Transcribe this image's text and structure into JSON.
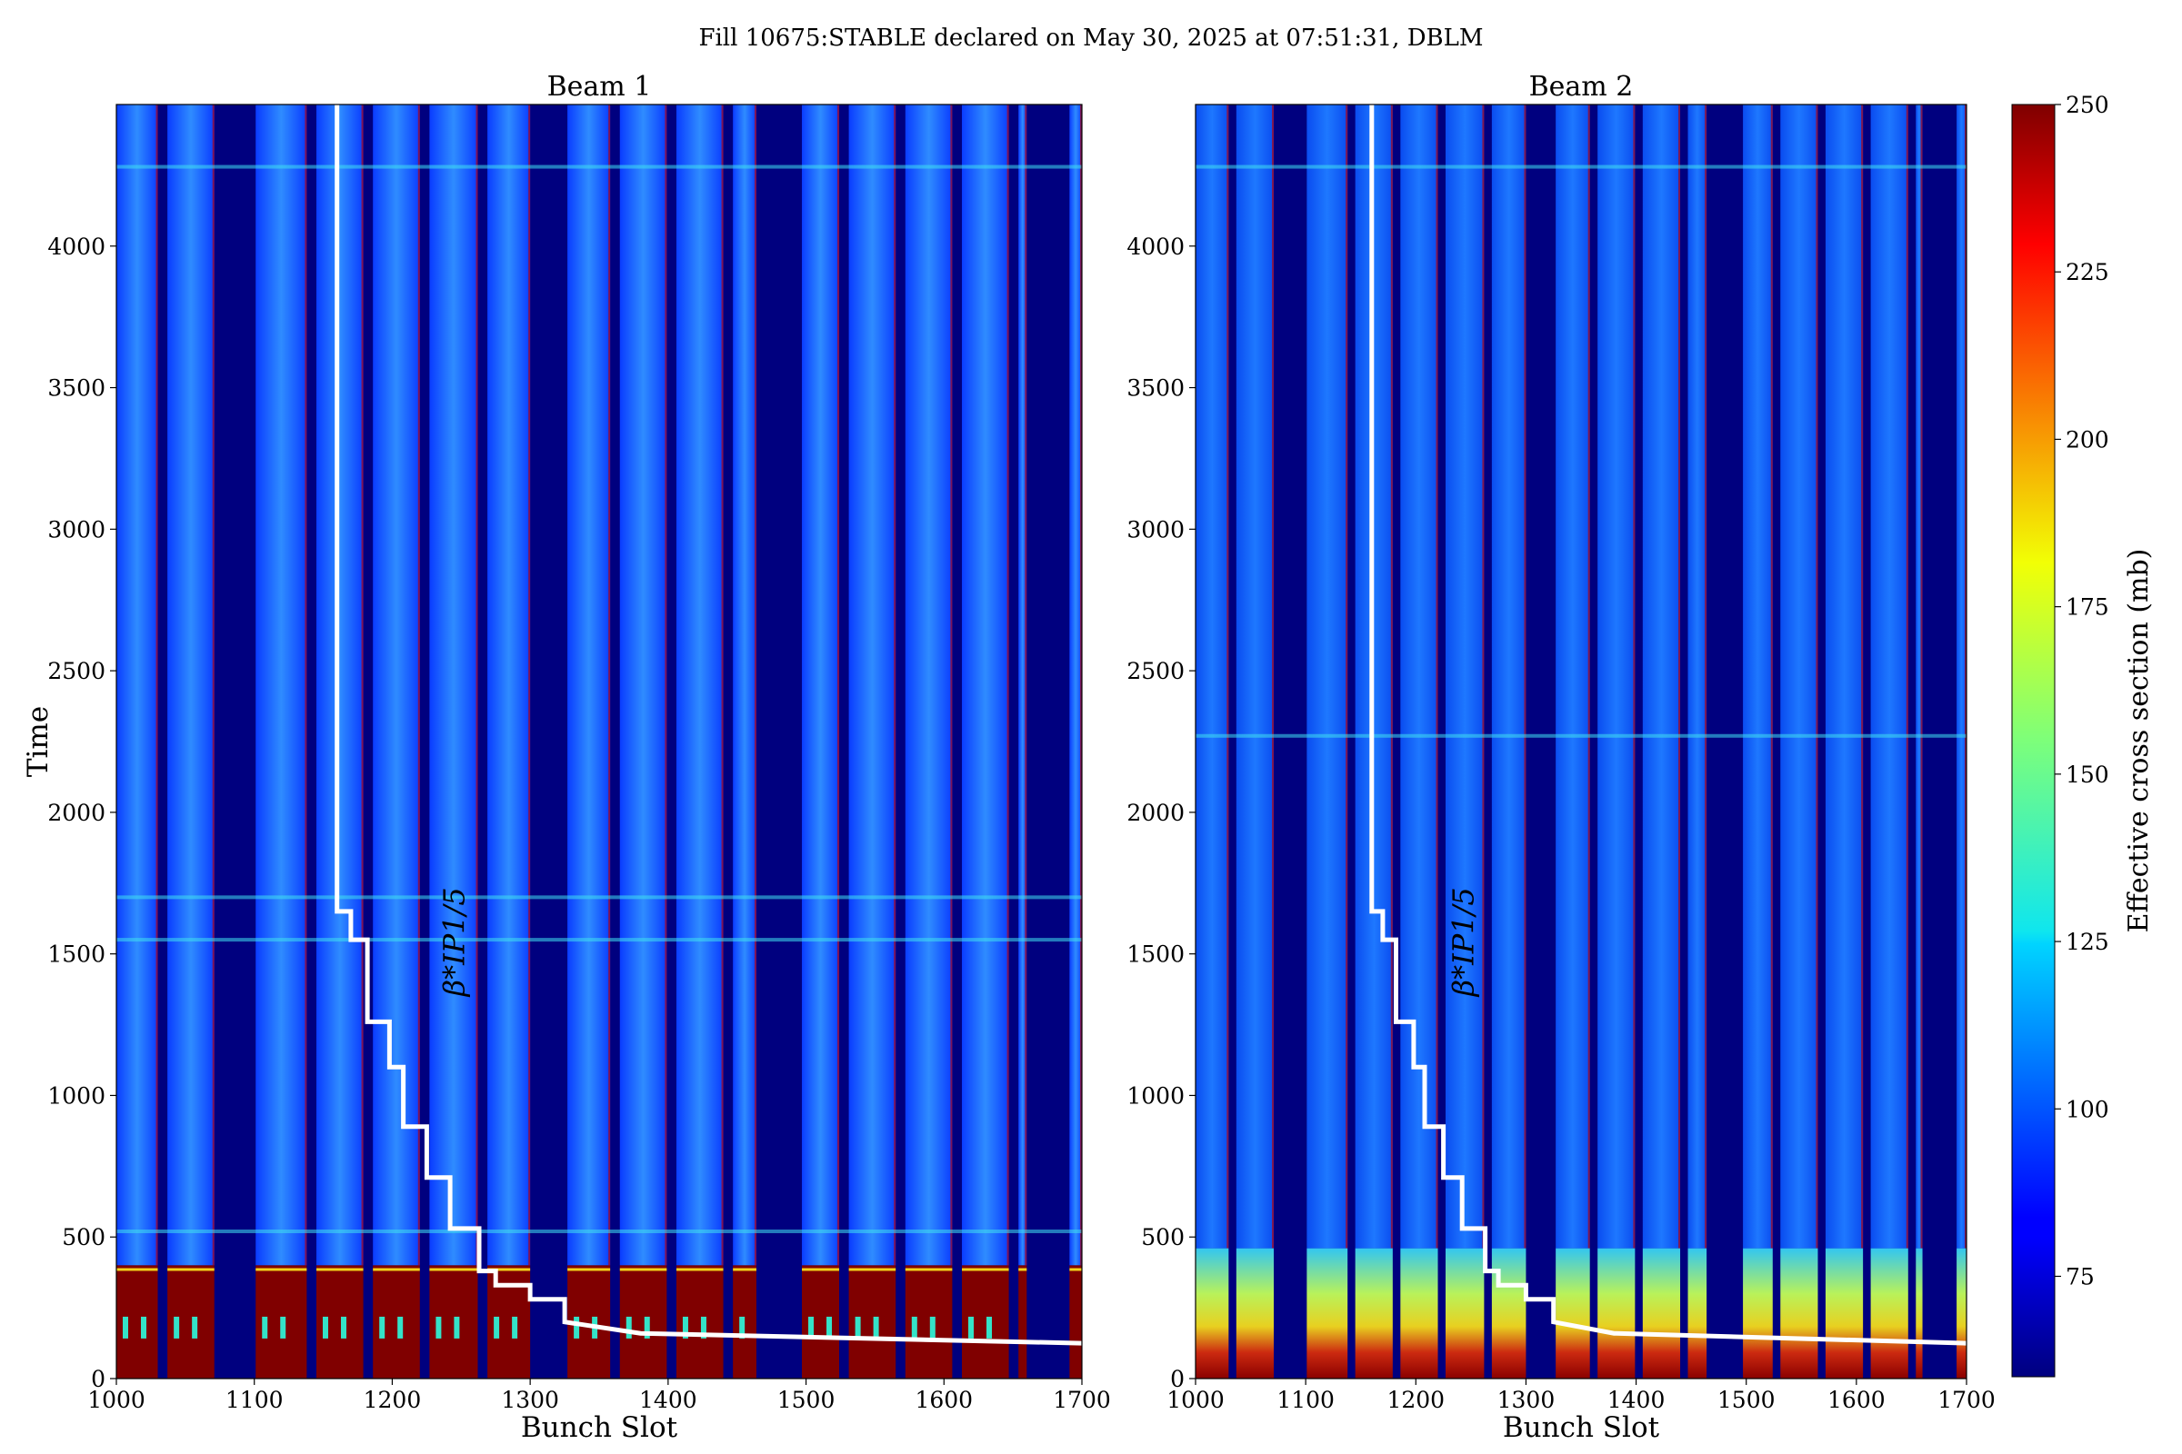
{
  "figure": {
    "suptitle": "Fill 10675:STABLE declared on May 30, 2025 at 07:51:31, DBLM"
  },
  "colorbar": {
    "label": "Effective cross section (mb)",
    "min": 60,
    "max": 250,
    "ticks": [
      75,
      100,
      125,
      150,
      175,
      200,
      225,
      250
    ],
    "colormap": "jet"
  },
  "chart_data": [
    {
      "type": "heatmap",
      "title": "Beam 1",
      "xlabel": "Bunch Slot",
      "ylabel": "Time",
      "xlim": [
        1000,
        1700
      ],
      "ylim": [
        0,
        4500
      ],
      "xticks": [
        1000,
        1100,
        1200,
        1300,
        1400,
        1500,
        1600,
        1700
      ],
      "yticks": [
        0,
        500,
        1000,
        1500,
        2000,
        2500,
        3000,
        3500,
        4000
      ],
      "annotation": "β*IP1/5",
      "empty_slot_ranges": [
        [
          1030,
          1037
        ],
        [
          1071,
          1101
        ],
        [
          1138,
          1145
        ],
        [
          1179,
          1186
        ],
        [
          1220,
          1227
        ],
        [
          1262,
          1269
        ],
        [
          1300,
          1327
        ],
        [
          1358,
          1365
        ],
        [
          1399,
          1406
        ],
        [
          1440,
          1447
        ],
        [
          1464,
          1497
        ],
        [
          1524,
          1531
        ],
        [
          1565,
          1572
        ],
        [
          1606,
          1613
        ],
        [
          1647,
          1654
        ],
        [
          1660,
          1691
        ]
      ],
      "high_value_band_time": [
        0,
        400
      ],
      "horizontal_features_time": [
        520,
        1550,
        1700,
        4280
      ],
      "beta_star_line": {
        "x": [
          1160,
          1160,
          1170,
          1170,
          1182,
          1182,
          1198,
          1198,
          1208,
          1208,
          1225,
          1225,
          1242,
          1242,
          1263,
          1263,
          1275,
          1275,
          1300,
          1300,
          1325,
          1325,
          1380,
          1700
        ],
        "time": [
          4500,
          1650,
          1650,
          1550,
          1550,
          1260,
          1260,
          1100,
          1100,
          890,
          890,
          710,
          710,
          530,
          530,
          380,
          380,
          330,
          330,
          280,
          280,
          200,
          160,
          125
        ]
      }
    },
    {
      "type": "heatmap",
      "title": "Beam 2",
      "xlabel": "Bunch Slot",
      "ylabel": "",
      "xlim": [
        1000,
        1700
      ],
      "ylim": [
        0,
        4500
      ],
      "xticks": [
        1000,
        1100,
        1200,
        1300,
        1400,
        1500,
        1600,
        1700
      ],
      "yticks": [
        0,
        500,
        1000,
        1500,
        2000,
        2500,
        3000,
        3500,
        4000
      ],
      "annotation": "β*IP1/5",
      "empty_slot_ranges": [
        [
          1030,
          1037
        ],
        [
          1071,
          1101
        ],
        [
          1138,
          1145
        ],
        [
          1179,
          1186
        ],
        [
          1220,
          1227
        ],
        [
          1262,
          1269
        ],
        [
          1300,
          1327
        ],
        [
          1358,
          1365
        ],
        [
          1399,
          1406
        ],
        [
          1440,
          1447
        ],
        [
          1464,
          1497
        ],
        [
          1524,
          1531
        ],
        [
          1565,
          1572
        ],
        [
          1606,
          1613
        ],
        [
          1647,
          1654
        ],
        [
          1660,
          1691
        ]
      ],
      "high_value_band_time": [
        0,
        460
      ],
      "horizontal_features_time": [
        2270,
        4280
      ],
      "beta_star_line": {
        "x": [
          1160,
          1160,
          1170,
          1170,
          1182,
          1182,
          1198,
          1198,
          1208,
          1208,
          1225,
          1225,
          1242,
          1242,
          1263,
          1263,
          1275,
          1275,
          1300,
          1300,
          1325,
          1325,
          1380,
          1700
        ],
        "time": [
          4500,
          1650,
          1650,
          1550,
          1550,
          1260,
          1260,
          1100,
          1100,
          890,
          890,
          710,
          710,
          530,
          530,
          380,
          380,
          330,
          330,
          280,
          280,
          200,
          160,
          125
        ]
      }
    }
  ]
}
